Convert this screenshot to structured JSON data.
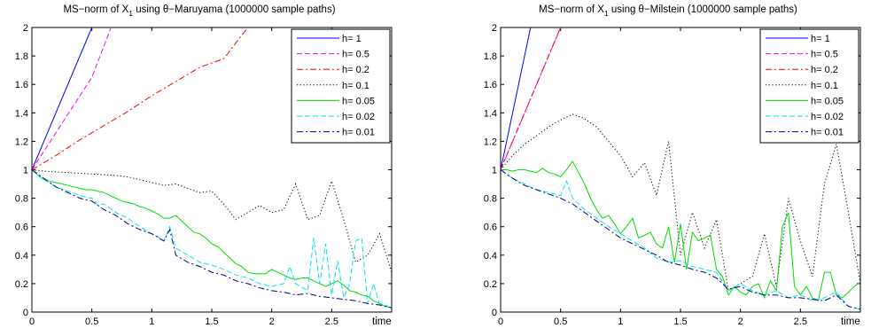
{
  "chart_data": [
    {
      "type": "line",
      "title_prefix": "MS−norm of X",
      "title_sub": "1",
      "title_suffix": " using θ−Maruyama (1000000 sample paths)",
      "xlabel": "time",
      "ylabel": "",
      "xlim": [
        0,
        3
      ],
      "ylim": [
        0,
        2
      ],
      "x_ticks": [
        0,
        0.5,
        1,
        1.5,
        2,
        2.5
      ],
      "x_tick_labels": [
        "0",
        "0.5",
        "1",
        "1.5",
        "2",
        "2.5"
      ],
      "y_ticks": [
        0,
        0.2,
        0.4,
        0.6,
        0.8,
        1,
        1.2,
        1.4,
        1.6,
        1.8,
        2
      ],
      "y_tick_labels": [
        "0",
        "0.2",
        "0.4",
        "0.6",
        "0.8",
        "1",
        "1.2",
        "1.4",
        "1.6",
        "1.8",
        "2"
      ],
      "grid": false,
      "legend_position": "top-right",
      "series": [
        {
          "name": "h= 1",
          "color": "#0000ff",
          "dash": "solid",
          "x": [
            0,
            0.5
          ],
          "y": [
            1.0,
            2.0
          ]
        },
        {
          "name": "h= 0.5",
          "color": "#ff00ff",
          "dash": "dashed",
          "x": [
            0,
            0.5,
            0.66
          ],
          "y": [
            1.0,
            1.65,
            2.0
          ]
        },
        {
          "name": "h= 0.2",
          "color": "#ff0000",
          "dash": "dashdot",
          "x": [
            0,
            0.2,
            0.4,
            0.6,
            0.8,
            1.0,
            1.2,
            1.4,
            1.6,
            1.8
          ],
          "y": [
            1.0,
            1.1,
            1.21,
            1.31,
            1.41,
            1.52,
            1.62,
            1.72,
            1.78,
            2.0
          ]
        },
        {
          "name": "h= 0.1",
          "color": "#000000",
          "dash": "dotted",
          "x": [
            0,
            0.1,
            0.2,
            0.3,
            0.4,
            0.5,
            0.6,
            0.7,
            0.8,
            0.9,
            1.0,
            1.1,
            1.2,
            1.3,
            1.4,
            1.5,
            1.6,
            1.7,
            1.8,
            1.9,
            2.0,
            2.1,
            2.2,
            2.3,
            2.4,
            2.5,
            2.6,
            2.7,
            2.8,
            2.9,
            3.0
          ],
          "y": [
            1.0,
            0.99,
            0.985,
            0.98,
            0.975,
            0.97,
            0.965,
            0.96,
            0.95,
            0.93,
            0.91,
            0.89,
            0.9,
            0.87,
            0.84,
            0.85,
            0.76,
            0.65,
            0.7,
            0.75,
            0.7,
            0.72,
            0.9,
            0.65,
            0.68,
            0.92,
            0.65,
            0.35,
            0.4,
            0.55,
            0.28
          ]
        },
        {
          "name": "h= 0.05",
          "color": "#00dd00",
          "dash": "solid",
          "x": [
            0,
            0.05,
            0.1,
            0.15,
            0.2,
            0.25,
            0.3,
            0.35,
            0.4,
            0.45,
            0.5,
            0.55,
            0.6,
            0.65,
            0.7,
            0.75,
            0.8,
            0.85,
            0.9,
            0.95,
            1.0,
            1.05,
            1.1,
            1.15,
            1.2,
            1.25,
            1.3,
            1.35,
            1.4,
            1.45,
            1.5,
            1.55,
            1.6,
            1.65,
            1.7,
            1.75,
            1.8,
            1.85,
            1.9,
            1.95,
            2.0,
            2.05,
            2.1,
            2.15,
            2.2,
            2.25,
            2.3,
            2.35,
            2.4,
            2.45,
            2.5,
            2.55,
            2.6,
            2.65,
            2.7,
            2.75,
            2.8,
            2.85,
            2.9,
            2.95,
            3.0
          ],
          "y": [
            1.0,
            0.96,
            0.93,
            0.92,
            0.91,
            0.9,
            0.89,
            0.88,
            0.87,
            0.86,
            0.86,
            0.85,
            0.84,
            0.82,
            0.8,
            0.78,
            0.77,
            0.76,
            0.74,
            0.73,
            0.71,
            0.69,
            0.66,
            0.66,
            0.68,
            0.64,
            0.6,
            0.56,
            0.55,
            0.52,
            0.48,
            0.46,
            0.42,
            0.38,
            0.34,
            0.32,
            0.28,
            0.27,
            0.27,
            0.27,
            0.3,
            0.28,
            0.26,
            0.24,
            0.23,
            0.24,
            0.24,
            0.22,
            0.2,
            0.18,
            0.2,
            0.22,
            0.19,
            0.15,
            0.14,
            0.12,
            0.11,
            0.08,
            0.06,
            0.04,
            0.03
          ]
        },
        {
          "name": "h= 0.02",
          "color": "#00e5ee",
          "dash": "dashed",
          "x": [
            0,
            0.1,
            0.2,
            0.3,
            0.4,
            0.5,
            0.55,
            0.6,
            0.7,
            0.8,
            0.9,
            1.0,
            1.05,
            1.1,
            1.15,
            1.2,
            1.3,
            1.4,
            1.5,
            1.6,
            1.7,
            1.8,
            1.9,
            2.0,
            2.1,
            2.15,
            2.2,
            2.3,
            2.35,
            2.4,
            2.45,
            2.5,
            2.55,
            2.6,
            2.65,
            2.7,
            2.75,
            2.8,
            2.85,
            2.9,
            3.0
          ],
          "y": [
            1.0,
            0.93,
            0.88,
            0.85,
            0.82,
            0.8,
            0.75,
            0.76,
            0.7,
            0.66,
            0.6,
            0.55,
            0.53,
            0.5,
            0.6,
            0.45,
            0.4,
            0.35,
            0.33,
            0.3,
            0.26,
            0.24,
            0.2,
            0.18,
            0.2,
            0.32,
            0.2,
            0.15,
            0.52,
            0.2,
            0.48,
            0.12,
            0.36,
            0.1,
            0.2,
            0.5,
            0.52,
            0.06,
            0.2,
            0.05,
            0.04
          ]
        },
        {
          "name": "h= 0.01",
          "color": "#00008b",
          "dash": "dashdot",
          "x": [
            0,
            0.1,
            0.2,
            0.3,
            0.4,
            0.5,
            0.6,
            0.7,
            0.8,
            0.9,
            1.0,
            1.1,
            1.15,
            1.2,
            1.3,
            1.4,
            1.5,
            1.6,
            1.7,
            1.8,
            1.9,
            2.0,
            2.1,
            2.2,
            2.3,
            2.4,
            2.5,
            2.6,
            2.7,
            2.8,
            2.9,
            3.0
          ],
          "y": [
            1.0,
            0.94,
            0.88,
            0.84,
            0.8,
            0.78,
            0.72,
            0.68,
            0.62,
            0.58,
            0.55,
            0.5,
            0.58,
            0.4,
            0.35,
            0.32,
            0.28,
            0.26,
            0.22,
            0.2,
            0.17,
            0.15,
            0.14,
            0.12,
            0.13,
            0.11,
            0.1,
            0.09,
            0.08,
            0.06,
            0.05,
            0.03
          ]
        }
      ]
    },
    {
      "type": "line",
      "title_prefix": "MS−norm of X",
      "title_sub": "1",
      "title_suffix": " using θ−Milstein (1000000 sample paths)",
      "xlabel": "time",
      "ylabel": "",
      "xlim": [
        0,
        3
      ],
      "ylim": [
        0,
        2
      ],
      "x_ticks": [
        0,
        0.5,
        1,
        1.5,
        2,
        2.5
      ],
      "x_tick_labels": [
        "0",
        "0.5",
        "1",
        "1.5",
        "2",
        "2.5"
      ],
      "y_ticks": [
        0,
        0.2,
        0.4,
        0.6,
        0.8,
        1,
        1.2,
        1.4,
        1.6,
        1.8,
        2
      ],
      "y_tick_labels": [
        "0",
        "0.2",
        "0.4",
        "0.6",
        "0.8",
        "1",
        "1.2",
        "1.4",
        "1.6",
        "1.8",
        "2"
      ],
      "grid": false,
      "legend_position": "top-right",
      "series": [
        {
          "name": "h= 1",
          "color": "#0000ff",
          "dash": "solid",
          "x": [
            0,
            0.25
          ],
          "y": [
            1.0,
            2.0
          ]
        },
        {
          "name": "h= 0.5",
          "color": "#ff00ff",
          "dash": "dashed",
          "x": [
            0,
            0.5
          ],
          "y": [
            1.0,
            2.0
          ]
        },
        {
          "name": "h= 0.2",
          "color": "#ff0000",
          "dash": "dashdot",
          "x": [
            0,
            0.2,
            0.4,
            0.5
          ],
          "y": [
            1.0,
            1.4,
            1.8,
            2.0
          ]
        },
        {
          "name": "h= 0.1",
          "color": "#000000",
          "dash": "dotted",
          "x": [
            0,
            0.1,
            0.2,
            0.3,
            0.4,
            0.5,
            0.6,
            0.7,
            0.8,
            0.9,
            1.0,
            1.1,
            1.2,
            1.3,
            1.4,
            1.5,
            1.6,
            1.7,
            1.8,
            1.9,
            2.0,
            2.1,
            2.2,
            2.3,
            2.4,
            2.5,
            2.6,
            2.7,
            2.8,
            2.9,
            3.0
          ],
          "y": [
            1.0,
            1.1,
            1.18,
            1.24,
            1.3,
            1.35,
            1.39,
            1.36,
            1.3,
            1.2,
            1.1,
            0.95,
            1.05,
            0.82,
            1.2,
            0.4,
            0.7,
            0.45,
            0.65,
            0.15,
            0.2,
            0.25,
            0.55,
            0.18,
            0.8,
            0.5,
            0.25,
            0.9,
            1.18,
            0.7,
            0.2
          ]
        },
        {
          "name": "h= 0.05",
          "color": "#00dd00",
          "dash": "solid",
          "x": [
            0,
            0.05,
            0.1,
            0.15,
            0.2,
            0.25,
            0.3,
            0.35,
            0.4,
            0.45,
            0.5,
            0.55,
            0.6,
            0.65,
            0.7,
            0.75,
            0.8,
            0.85,
            0.9,
            0.95,
            1.0,
            1.05,
            1.1,
            1.15,
            1.2,
            1.25,
            1.3,
            1.35,
            1.4,
            1.45,
            1.5,
            1.55,
            1.6,
            1.65,
            1.7,
            1.75,
            1.8,
            1.85,
            1.9,
            1.95,
            2.0,
            2.05,
            2.1,
            2.15,
            2.2,
            2.25,
            2.3,
            2.35,
            2.4,
            2.45,
            2.5,
            2.55,
            2.6,
            2.65,
            2.7,
            2.75,
            2.8,
            2.85,
            2.9,
            2.95,
            3.0
          ],
          "y": [
            1.0,
            1.0,
            0.99,
            1.0,
            1.0,
            0.99,
            0.98,
            1.01,
            0.98,
            0.97,
            0.95,
            1.0,
            1.06,
            0.98,
            0.9,
            0.8,
            0.72,
            0.66,
            0.68,
            0.62,
            0.55,
            0.6,
            0.66,
            0.52,
            0.54,
            0.56,
            0.48,
            0.45,
            0.6,
            0.35,
            0.62,
            0.3,
            0.56,
            0.5,
            0.52,
            0.54,
            0.3,
            0.25,
            0.12,
            0.18,
            0.14,
            0.12,
            0.18,
            0.2,
            0.1,
            0.22,
            0.15,
            0.6,
            0.7,
            0.18,
            0.12,
            0.18,
            0.1,
            0.08,
            0.28,
            0.28,
            0.12,
            0.1,
            0.14,
            0.18,
            0.21
          ]
        },
        {
          "name": "h= 0.02",
          "color": "#00e5ee",
          "dash": "dashed",
          "x": [
            0,
            0.1,
            0.2,
            0.3,
            0.4,
            0.5,
            0.55,
            0.6,
            0.7,
            0.8,
            0.9,
            1.0,
            1.1,
            1.2,
            1.3,
            1.4,
            1.5,
            1.6,
            1.7,
            1.8,
            1.9,
            2.0,
            2.1,
            2.2,
            2.3,
            2.4,
            2.5,
            2.6,
            2.7,
            2.8,
            2.9,
            3.0
          ],
          "y": [
            1.0,
            0.94,
            0.9,
            0.86,
            0.84,
            0.82,
            0.92,
            0.8,
            0.72,
            0.66,
            0.6,
            0.55,
            0.5,
            0.45,
            0.38,
            0.35,
            0.36,
            0.32,
            0.3,
            0.28,
            0.15,
            0.2,
            0.15,
            0.12,
            0.15,
            0.1,
            0.12,
            0.08,
            0.1,
            0.14,
            0.04,
            0.02
          ]
        },
        {
          "name": "h= 0.01",
          "color": "#00008b",
          "dash": "dashdot",
          "x": [
            0,
            0.1,
            0.2,
            0.3,
            0.4,
            0.5,
            0.6,
            0.7,
            0.8,
            0.9,
            1.0,
            1.1,
            1.2,
            1.3,
            1.4,
            1.5,
            1.6,
            1.7,
            1.8,
            1.9,
            2.0,
            2.1,
            2.2,
            2.3,
            2.4,
            2.5,
            2.6,
            2.7,
            2.8,
            2.9,
            3.0
          ],
          "y": [
            1.0,
            0.94,
            0.89,
            0.86,
            0.83,
            0.8,
            0.76,
            0.7,
            0.64,
            0.58,
            0.52,
            0.48,
            0.44,
            0.4,
            0.35,
            0.33,
            0.3,
            0.28,
            0.24,
            0.16,
            0.18,
            0.14,
            0.12,
            0.12,
            0.1,
            0.1,
            0.09,
            0.08,
            0.12,
            0.04,
            0.02
          ]
        }
      ]
    }
  ]
}
